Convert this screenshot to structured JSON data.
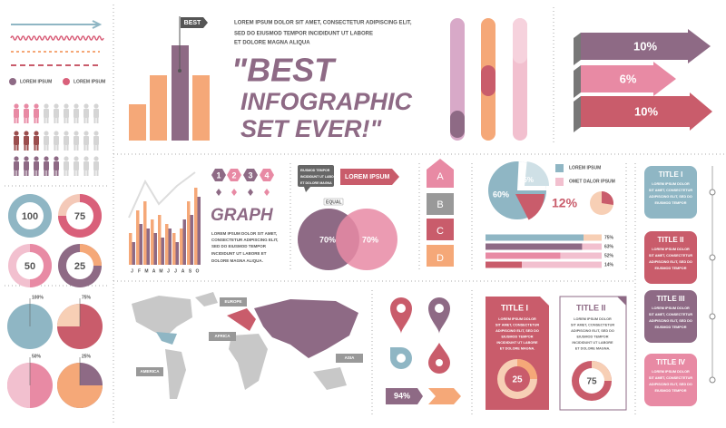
{
  "header": {
    "flag": "BEST",
    "intro": [
      "LOREM IPSUM DOLOR SIT AMET, CONSECTETUR ADIPISCING ELIT,",
      "SED DO EIUSMOD TEMPOR INCIDIDUNT UT LABORE",
      "ET DOLORE MAGNA ALIQUA"
    ],
    "quote": [
      "\"BEST",
      "INFOGRAPHIC",
      "SET EVER!\""
    ]
  },
  "arrows": [
    "10%",
    "6%",
    "10%"
  ],
  "legend": [
    "LOREM IPSUM",
    "LOREM IPSUM"
  ],
  "donuts": [
    100,
    75,
    50,
    25
  ],
  "pies": [
    "100%",
    "75%",
    "50%",
    "25%"
  ],
  "graph": {
    "steps": [
      "1",
      "2",
      "3",
      "4"
    ],
    "title": "GRAPH",
    "text": [
      "LOREM IPSUM DOLOR SIT AMET,",
      "CONSECTETUR ADIPISCING ELIT,",
      "SED DO EIUSMOD TEMPOR",
      "INCIDIDUNT UT LABORE ET",
      "DOLORE MAGNA ALIQUA."
    ],
    "months": [
      "J",
      "F",
      "M",
      "A",
      "M",
      "J",
      "J",
      "A",
      "S",
      "O"
    ]
  },
  "venn": {
    "note": [
      "EIUSMOD TEMPOR",
      "INCIDIDUNT UT LABORE",
      "ET DOLORE MAGNA"
    ],
    "banner": "LOREM IPSUM",
    "equal": "EQUAL",
    "left": "70%",
    "right": "70%"
  },
  "letters": [
    "A",
    "B",
    "C",
    "D"
  ],
  "pie_panel": {
    "big": "60%",
    "small": "25%",
    "legend": [
      "LOREM IPSUM",
      "OMET DALOR IPSUM"
    ],
    "percent": "12%"
  },
  "progress": [
    "75%",
    "63%",
    "52%",
    "14%"
  ],
  "titles": [
    {
      "title": "TITLE I",
      "text": [
        "LOREM IPSUM DOLOR",
        "SIT AMET, CONSECTETUR",
        "ADIPISCING ELIT, SED DO",
        "EIUSMOD TEMPOR"
      ]
    },
    {
      "title": "TITLE II",
      "text": [
        "LOREM IPSUM DOLOR",
        "SIT AMET, CONSECTETUR",
        "ADIPISCING ELIT, SED DO",
        "EIUSMOD TEMPOR"
      ]
    },
    {
      "title": "TITLE III",
      "text": [
        "LOREM IPSUM DOLOR",
        "SIT AMET, CONSECTETUR",
        "ADIPISCING ELIT, SED DO",
        "EIUSMOD TEMPOR"
      ]
    },
    {
      "title": "TITLE IV",
      "text": [
        "LOREM IPSUM DOLOR",
        "SIT AMET, CONSECTETUR",
        "ADIPISCING ELIT, SED DO",
        "EIUSMOD TEMPOR"
      ]
    }
  ],
  "map": {
    "labels": [
      "EUROPE",
      "AFRICA",
      "AMERICA",
      "ASIA"
    ]
  },
  "icons": {
    "percent": "94%"
  },
  "cards": [
    {
      "title": "TITLE I",
      "text": [
        "LOREM IPSUM DOLOR",
        "SIT AMET, CONSECTETUR",
        "ADIPISCING ELIT, SED DO",
        "EIUSMOD TEMPOR",
        "INCIDIDUNT UT LABORE",
        "ET DOLORE MAGNA."
      ],
      "value": "25"
    },
    {
      "title": "TITLE II",
      "text": [
        "LOREM IPSUM DOLOR",
        "SIT AMET, CONSECTETUR",
        "ADIPISCING ELIT, SED DO",
        "EIUSMOD TEMPOR",
        "INCIDIDUNT UT LABORE",
        "ET DOLORE MAGNA."
      ],
      "value": "75"
    }
  ]
}
